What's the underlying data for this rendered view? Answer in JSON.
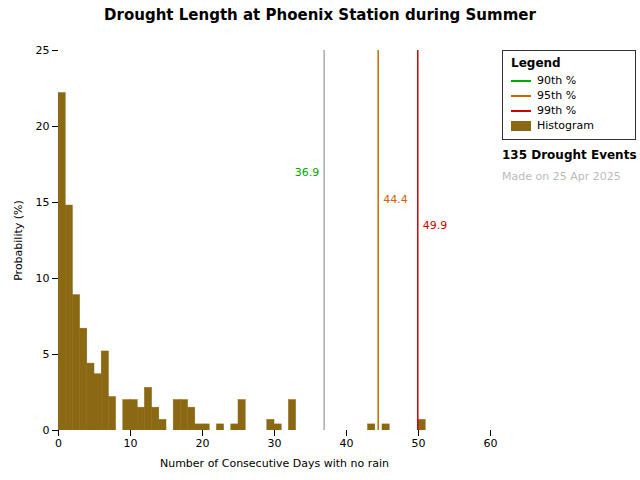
{
  "chart_data": {
    "type": "histogram",
    "title": "Drought Length at Phoenix Station during Summer",
    "xlabel": "Number of Consecutive Days with no rain",
    "ylabel": "Probability (%)",
    "name": "Histogram",
    "color": "#8B6914",
    "bins": [
      0,
      1,
      2,
      3,
      4,
      5,
      6,
      7,
      8,
      9,
      10,
      11,
      12,
      13,
      14,
      15,
      16,
      17,
      18,
      19,
      20,
      21,
      22,
      23,
      24,
      25,
      26,
      27,
      28,
      29,
      30,
      31,
      32,
      33,
      34,
      35,
      36,
      37,
      38,
      39,
      40,
      41,
      42,
      43,
      44,
      45,
      46,
      47,
      48,
      49,
      50,
      51,
      52,
      53,
      54,
      55,
      56,
      57,
      58,
      59,
      60
    ],
    "values": [
      22.2,
      14.8,
      8.9,
      6.7,
      4.4,
      3.7,
      5.2,
      2.2,
      0.0,
      2.0,
      2.0,
      1.5,
      2.8,
      1.5,
      0.7,
      0.0,
      2.0,
      2.0,
      1.5,
      0.4,
      0.4,
      0.0,
      0.4,
      0.0,
      0.4,
      2.0,
      0.0,
      0.0,
      0.0,
      0.7,
      0.4,
      0.0,
      2.0,
      0.0,
      0.0,
      0.0,
      0.0,
      0.0,
      0.0,
      0.0,
      0.0,
      0.0,
      0.0,
      0.4,
      0.0,
      0.4,
      0.0,
      0.0,
      0.0,
      0.0,
      0.7,
      0.0,
      0.0,
      0.0,
      0.0,
      0.0,
      0.0,
      0.0,
      0.0,
      0.0
    ],
    "xlim": [
      0,
      60
    ],
    "ylim": [
      0,
      25
    ],
    "xticks": [
      0,
      10,
      20,
      30,
      40,
      50,
      60
    ],
    "yticks": [
      0,
      5,
      10,
      15,
      20,
      25
    ],
    "grid": false,
    "legend": "upper right",
    "legend_title": "Legend",
    "reference_lines": [
      {
        "name": "90th %",
        "x": 36.9,
        "color": "#aaaaaa",
        "label_color": "#00aa00",
        "legend_color": "#00aa00"
      },
      {
        "name": "95th %",
        "x": 44.4,
        "color": "#cc6600",
        "label_color": "#cc6600",
        "legend_color": "#cc6600"
      },
      {
        "name": "99th %",
        "x": 49.9,
        "color": "#cc0000",
        "label_color": "#cc0000",
        "legend_color": "#cc0000"
      }
    ],
    "annotations": [
      {
        "text": "135 Drought Events"
      },
      {
        "text": "Made on 25 Apr 2025",
        "color": "#bbbbbb"
      }
    ]
  }
}
